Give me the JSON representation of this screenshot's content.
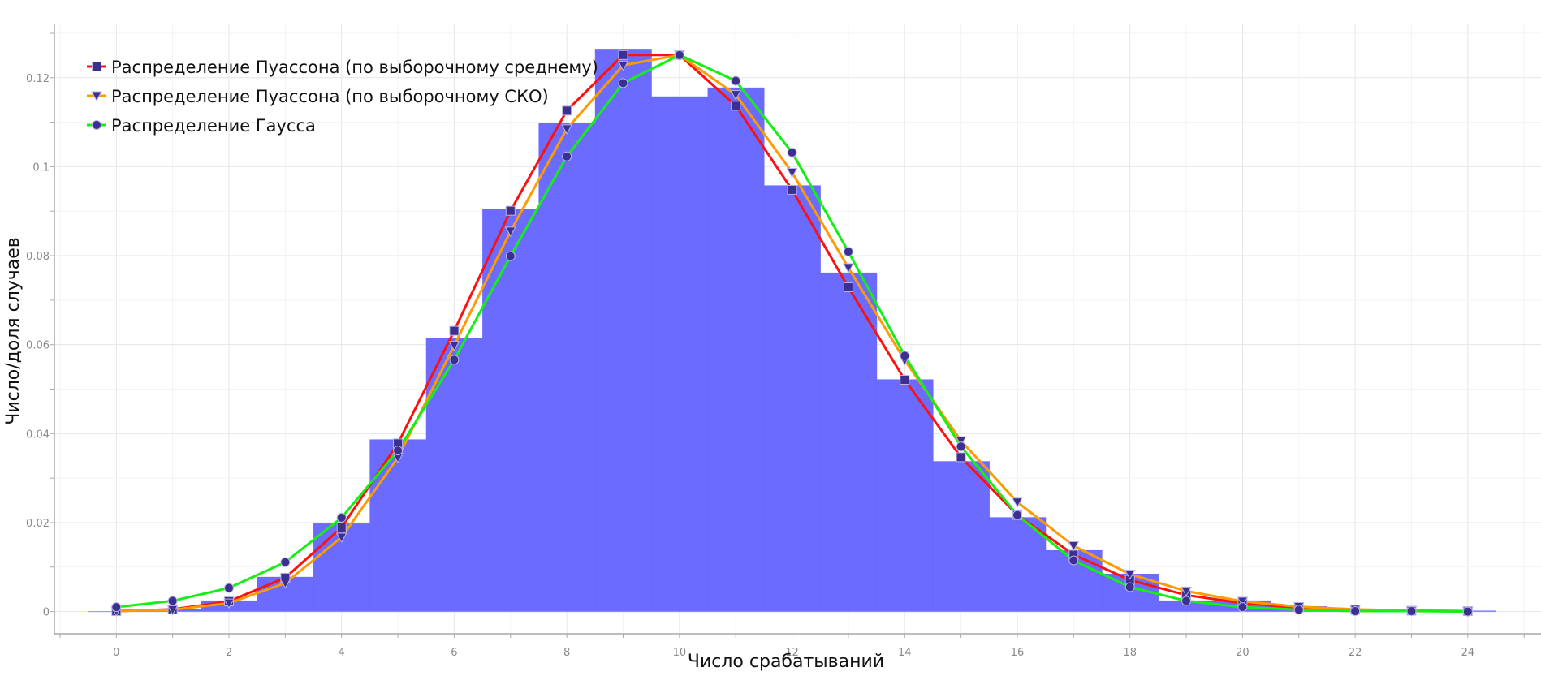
{
  "chart_data": {
    "type": "bar",
    "title": "",
    "xlabel": "Число срабатываний",
    "ylabel": "Число/доля случаев",
    "xlim": [
      -1.1,
      25.3
    ],
    "ylim": [
      -0.005,
      0.132
    ],
    "grid": true,
    "legend_position": "top-left",
    "x_ticks": [
      0,
      2,
      4,
      6,
      8,
      10,
      12,
      14,
      16,
      18,
      20,
      22,
      24
    ],
    "y_ticks": [
      0,
      0.02,
      0.04,
      0.06,
      0.08,
      0.1,
      0.12
    ],
    "y_tick_labels": [
      "0",
      "0.02",
      "0.04",
      "0.06",
      "0.08",
      "0.1",
      "0.12"
    ],
    "histogram": {
      "color": "#6666ff",
      "x": [
        0,
        1,
        2,
        3,
        4,
        5,
        6,
        7,
        8,
        9,
        10,
        11,
        12,
        13,
        14,
        15,
        16,
        17,
        18,
        19,
        20,
        21,
        22,
        23,
        24
      ],
      "values": [
        0,
        0.0005,
        0.0025,
        0.0078,
        0.0198,
        0.0387,
        0.0615,
        0.0905,
        0.1098,
        0.1265,
        0.1158,
        0.1178,
        0.0958,
        0.0762,
        0.0522,
        0.0338,
        0.0212,
        0.0138,
        0.0085,
        0.0025,
        0.0025,
        0.0012,
        0.0005,
        0.0003,
        0.0002
      ]
    },
    "series": [
      {
        "name": "Распределение Пуассона (по выборочному среднему)",
        "color": "#ff1010",
        "marker": "square",
        "x": [
          0,
          1,
          2,
          3,
          4,
          5,
          6,
          7,
          8,
          9,
          10,
          11,
          12,
          13,
          14,
          15,
          16,
          17,
          18,
          19,
          20,
          21,
          22,
          23,
          24
        ],
        "values": [
          0.0001,
          0.0005,
          0.0023,
          0.0076,
          0.0189,
          0.0378,
          0.0631,
          0.0901,
          0.1126,
          0.1251,
          0.1251,
          0.1137,
          0.0948,
          0.0729,
          0.0521,
          0.0347,
          0.0217,
          0.0128,
          0.0071,
          0.0037,
          0.0019,
          0.0009,
          0.0004,
          0.0002,
          0.0001
        ]
      },
      {
        "name": "Распределение Пуассона (по выборочному СКО)",
        "color": "#ff9a00",
        "marker": "triangle-down",
        "x": [
          0,
          1,
          2,
          3,
          4,
          5,
          6,
          7,
          8,
          9,
          10,
          11,
          12,
          13,
          14,
          15,
          16,
          17,
          18,
          19,
          20,
          21,
          22,
          23,
          24
        ],
        "values": [
          0.0001,
          0.0004,
          0.0019,
          0.0064,
          0.0167,
          0.0346,
          0.0598,
          0.0855,
          0.1085,
          0.1228,
          0.1251,
          0.1162,
          0.0987,
          0.0773,
          0.0565,
          0.0384,
          0.0246,
          0.0148,
          0.0084,
          0.0046,
          0.0023,
          0.0011,
          0.0005,
          0.0002,
          0.0001
        ]
      },
      {
        "name": "Распределение Гаусса",
        "color": "#14f014",
        "marker": "circle",
        "x": [
          0,
          1,
          2,
          3,
          4,
          5,
          6,
          7,
          8,
          9,
          10,
          11,
          12,
          13,
          14,
          15,
          16,
          17,
          18,
          19,
          20,
          21,
          22,
          23,
          24
        ],
        "values": [
          0.001,
          0.0024,
          0.0053,
          0.0111,
          0.0211,
          0.0362,
          0.0566,
          0.0799,
          0.1023,
          0.1188,
          0.1251,
          0.1193,
          0.1032,
          0.0809,
          0.0575,
          0.0371,
          0.0217,
          0.0115,
          0.0055,
          0.0024,
          0.001,
          0.0004,
          0.0001,
          0.0001,
          0.0
        ]
      }
    ],
    "marker_color": "#3b2f8f"
  }
}
